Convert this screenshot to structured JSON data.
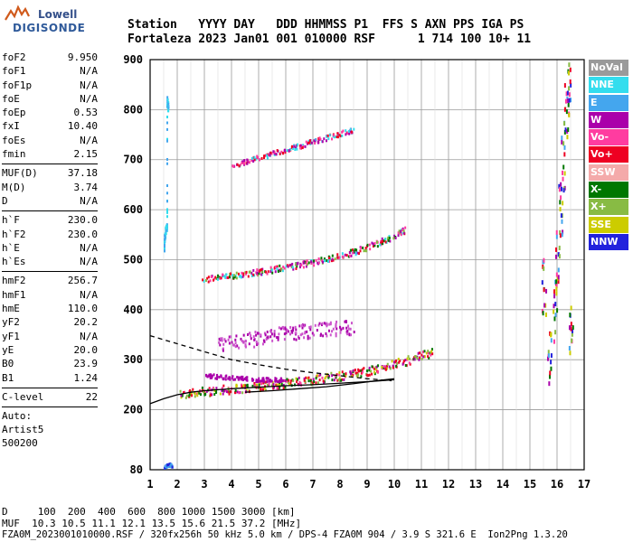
{
  "logo": {
    "line1": "Lowell",
    "line2": "DIGISONDE"
  },
  "header": {
    "row1": "Station   YYYY DAY   DDD HHMMSS P1  FFS S AXN PPS IGA PS",
    "row2": "Fortaleza 2023 Jan01 001 010000 RSF      1 714 100 10+ 11"
  },
  "params": [
    {
      "label": "foF2",
      "value": "9.950"
    },
    {
      "label": "foF1",
      "value": "N/A"
    },
    {
      "label": "foF1p",
      "value": "N/A"
    },
    {
      "label": "foE",
      "value": "N/A"
    },
    {
      "label": "foEp",
      "value": "0.53"
    },
    {
      "label": "fxI",
      "value": "10.40"
    },
    {
      "label": "foEs",
      "value": "N/A"
    },
    {
      "label": "fmin",
      "value": "2.15"
    },
    {
      "divider": true
    },
    {
      "label": "MUF(D)",
      "value": "37.18"
    },
    {
      "label": "M(D)",
      "value": "3.74"
    },
    {
      "label": "D",
      "value": "N/A"
    },
    {
      "divider": true
    },
    {
      "label": "h`F",
      "value": "230.0"
    },
    {
      "label": "h`F2",
      "value": "230.0"
    },
    {
      "label": "h`E",
      "value": "N/A"
    },
    {
      "label": "h`Es",
      "value": "N/A"
    },
    {
      "divider": true
    },
    {
      "label": "hmF2",
      "value": "256.7"
    },
    {
      "label": "hmF1",
      "value": "N/A"
    },
    {
      "label": "hmE",
      "value": "110.0"
    },
    {
      "label": "yF2",
      "value": "20.2"
    },
    {
      "label": "yF1",
      "value": "N/A"
    },
    {
      "label": "yE",
      "value": "20.0"
    },
    {
      "label": "B0",
      "value": "23.9"
    },
    {
      "label": "B1",
      "value": "1.24"
    },
    {
      "divider": true
    },
    {
      "label": "C-level",
      "value": "22"
    },
    {
      "divider": true
    },
    {
      "text": "Auto:"
    },
    {
      "text": "Artist5"
    },
    {
      "text": "500200"
    }
  ],
  "legend": [
    {
      "label": "NoVal",
      "bg": "#9a9a9a",
      "fg": "#ffffff"
    },
    {
      "label": "NNE",
      "bg": "#33ddee",
      "fg": "#ffffff"
    },
    {
      "label": "E",
      "bg": "#44a6ee",
      "fg": "#ffffff"
    },
    {
      "label": "W",
      "bg": "#aa00aa",
      "fg": "#ffffff"
    },
    {
      "label": "Vo-",
      "bg": "#ff3ca0",
      "fg": "#ffffff"
    },
    {
      "label": "Vo+",
      "bg": "#ee0022",
      "fg": "#ffffff"
    },
    {
      "label": "SSW",
      "bg": "#f4aaaa",
      "fg": "#ffffff"
    },
    {
      "label": "X-",
      "bg": "#007700",
      "fg": "#ffffff"
    },
    {
      "label": "X+",
      "bg": "#88bb44",
      "fg": "#ffffff"
    },
    {
      "label": "SSE",
      "bg": "#cccc00",
      "fg": "#ffffff"
    },
    {
      "label": "NNW",
      "bg": "#2222dd",
      "fg": "#ffffff"
    }
  ],
  "footer": {
    "d_row": "D     100  200  400  600  800 1000 1500 3000 [km]",
    "muf_row": "MUF  10.3 10.5 11.1 12.1 13.5 15.6 21.5 37.2 [MHz]",
    "file_row": "FZA0M_2023001010000.RSF / 320fx256h 50 kHz 5.0 km / DPS-4 FZA0M 904 / 3.9 S 321.6 E  Ion2Png 1.3.20"
  },
  "chart_data": {
    "type": "scatter",
    "title": "",
    "xlabel": "",
    "ylabel": "",
    "xlim": [
      1,
      17
    ],
    "ylim": [
      80,
      900
    ],
    "xticks": [
      1,
      2,
      3,
      4,
      5,
      6,
      7,
      8,
      9,
      10,
      11,
      12,
      13,
      14,
      15,
      16,
      17
    ],
    "yticks": [
      80,
      200,
      300,
      400,
      500,
      600,
      700,
      800,
      900
    ],
    "grid": true,
    "traces": [
      {
        "name": "F2 o-trace 1st hop",
        "x": [
          2.0,
          2.5,
          3.0,
          3.5,
          4.0,
          4.5,
          5.0,
          5.5,
          6.0,
          6.5,
          7.0,
          7.5,
          8.0,
          8.5,
          9.0,
          9.5,
          10.0,
          10.5,
          11.0,
          11.4
        ],
        "y": [
          232,
          235,
          238,
          241,
          243,
          246,
          249,
          252,
          255,
          258,
          262,
          266,
          270,
          275,
          280,
          286,
          293,
          301,
          310,
          318
        ],
        "spread": 18,
        "colors": [
          "#ee0022",
          "#ee0022",
          "#ff3ca0",
          "#007700",
          "#88bb44",
          "#cccc00",
          "#aa00aa"
        ]
      },
      {
        "name": "Multi-hop 2",
        "x": [
          2.9,
          3.5,
          4.0,
          4.5,
          5.0,
          5.5,
          6.0,
          6.5,
          7.0,
          7.5,
          8.0,
          8.5,
          9.0,
          9.5,
          10.0,
          10.4
        ],
        "y": [
          462,
          466,
          470,
          474,
          478,
          482,
          487,
          492,
          497,
          503,
          510,
          518,
          527,
          538,
          550,
          562
        ],
        "spread": 12,
        "colors": [
          "#ee0022",
          "#ff3ca0",
          "#007700",
          "#88bb44",
          "#aa00aa",
          "#33ddee"
        ]
      },
      {
        "name": "Multi-hop 3",
        "x": [
          4.0,
          4.5,
          5.0,
          5.5,
          6.0,
          6.5,
          7.0,
          7.5,
          8.0,
          8.5
        ],
        "y": [
          690,
          698,
          706,
          714,
          722,
          730,
          738,
          746,
          754,
          762
        ],
        "spread": 10,
        "colors": [
          "#ee0022",
          "#ff3ca0",
          "#33ddee",
          "#aa00aa"
        ]
      },
      {
        "name": "W diffuse",
        "x": [
          3.5,
          4.0,
          4.5,
          5.0,
          5.5,
          6.0,
          6.5,
          7.0,
          7.5,
          8.0,
          8.5
        ],
        "y": [
          330,
          335,
          340,
          345,
          350,
          355,
          358,
          360,
          362,
          365,
          368
        ],
        "spread": 30,
        "colors": [
          "#aa00aa",
          "#cc55cc"
        ]
      },
      {
        "name": "W lower",
        "x": [
          3.0,
          3.5,
          4.0,
          4.5,
          5.0,
          5.5,
          6.0
        ],
        "y": [
          270,
          268,
          266,
          264,
          262,
          262,
          262
        ],
        "spread": 8,
        "colors": [
          "#aa00aa"
        ]
      },
      {
        "name": "NNE sporadic",
        "x": [
          1.5,
          1.5,
          1.55,
          1.6,
          1.6,
          1.65
        ],
        "y": [
          520,
          540,
          560,
          570,
          820,
          805
        ],
        "spread": 18,
        "colors": [
          "#33ddee",
          "#44a6ee"
        ]
      },
      {
        "name": "Vertical 16MHz",
        "x": [
          15.9,
          16.0,
          16.1,
          16.2,
          16.3,
          16.4,
          16.5,
          15.7,
          15.5
        ],
        "y": [
          400,
          500,
          600,
          700,
          800,
          850,
          350,
          300,
          450
        ],
        "spread": 60,
        "colors": [
          "#007700",
          "#ee0022",
          "#cccc00",
          "#aa00aa",
          "#44a6ee",
          "#ff3ca0",
          "#88bb44",
          "#2222dd"
        ]
      },
      {
        "name": "Ground 1.8MHz",
        "x": [
          1.5,
          1.6,
          1.7,
          1.8
        ],
        "y": [
          88,
          90,
          92,
          90
        ],
        "spread": 6,
        "colors": [
          "#2222dd",
          "#44a6ee"
        ]
      }
    ],
    "curves": [
      {
        "name": "Ordinary model",
        "style": "solid",
        "x": [
          1.0,
          1.5,
          2.0,
          2.5,
          3.0,
          4.0,
          5.0,
          6.0,
          7.0,
          8.0,
          9.0,
          9.5,
          10.0
        ],
        "y": [
          212,
          222,
          230,
          235,
          238,
          242,
          245,
          248,
          250,
          253,
          256,
          258,
          260
        ]
      },
      {
        "name": "Upper model",
        "style": "solid",
        "x": [
          4.5,
          5.5,
          6.5,
          7.5,
          8.5,
          9.5,
          10.0
        ],
        "y": [
          235,
          238,
          242,
          246,
          252,
          259,
          262
        ]
      },
      {
        "name": "Dashed profile",
        "style": "dashed",
        "x": [
          1.0,
          1.5,
          2.0,
          2.5,
          3.0,
          3.5,
          4.0,
          5.0,
          6.0,
          7.0,
          8.0,
          9.0,
          9.9
        ],
        "y": [
          348,
          340,
          332,
          324,
          316,
          308,
          300,
          290,
          281,
          274,
          268,
          262,
          258
        ]
      }
    ]
  }
}
